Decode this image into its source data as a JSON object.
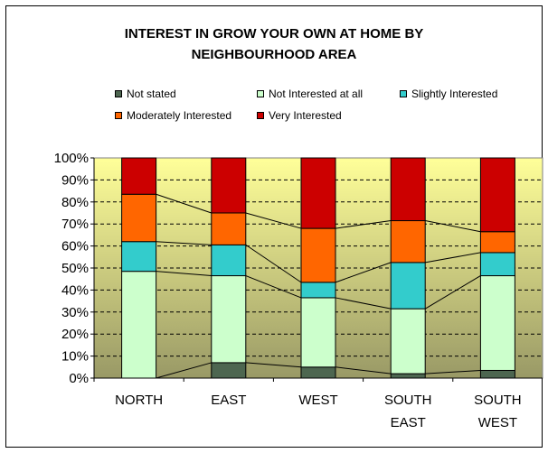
{
  "chart_data": {
    "type": "bar",
    "stacked": "percent",
    "title": "INTEREST IN GROW YOUR OWN AT HOME BY\nNEIGHBOURHOOD AREA",
    "xlabel": "",
    "ylabel": "",
    "ylim": [
      0,
      100
    ],
    "yticks": [
      "0%",
      "10%",
      "20%",
      "30%",
      "40%",
      "50%",
      "60%",
      "70%",
      "80%",
      "90%",
      "100%"
    ],
    "grid": true,
    "legend_position": "top",
    "series_lines": true,
    "categories": [
      "NORTH",
      "EAST",
      "WEST",
      "SOUTH\nEAST",
      "SOUTH\nWEST"
    ],
    "series": [
      {
        "name": "Not stated",
        "values": [
          0,
          7,
          5,
          2,
          3.5
        ],
        "color": "#4d6650"
      },
      {
        "name": "Not Interested at all",
        "values": [
          48.5,
          39.5,
          31.5,
          29.5,
          43
        ],
        "color": "#ccffcc"
      },
      {
        "name": "Slightly Interested",
        "values": [
          13.5,
          14,
          7,
          21,
          10.5
        ],
        "color": "#33cccc"
      },
      {
        "name": "Moderately Interested",
        "values": [
          21.5,
          14.5,
          24.5,
          19,
          9.5
        ],
        "color": "#ff6600"
      },
      {
        "name": "Very Interested",
        "values": [
          16.5,
          25,
          32,
          28.5,
          33.5
        ],
        "color": "#cc0000"
      }
    ],
    "plot_background": [
      "#ffff99",
      "#999966"
    ]
  }
}
